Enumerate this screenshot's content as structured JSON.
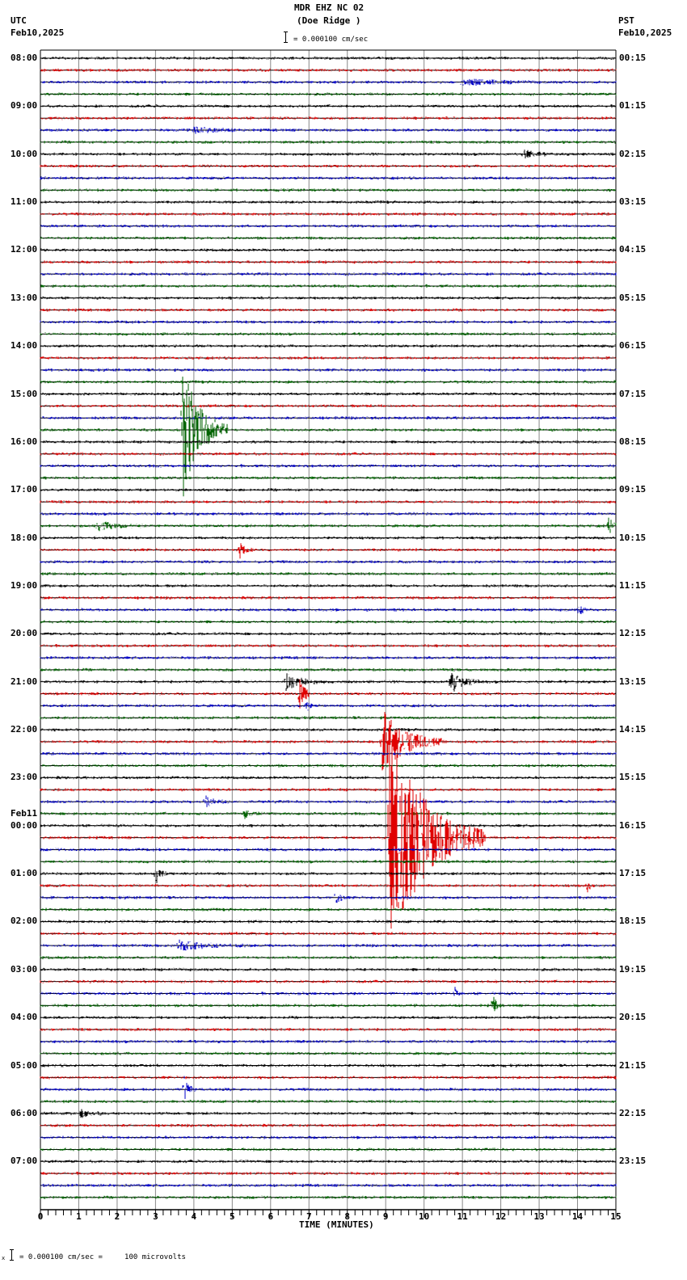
{
  "header": {
    "station": "MDR EHZ NC 02",
    "location": "(Doe Ridge )",
    "left_tz": "UTC",
    "left_date": "Feb10,2025",
    "right_tz": "PST",
    "right_date": "Feb10,2025",
    "scale_text": "= 0.000100 cm/sec"
  },
  "footer": {
    "scale_prefix": "x",
    "scale_text": "= 0.000100 cm/sec =     100 microvolts"
  },
  "chart_data": {
    "type": "line",
    "title": "MDR EHZ NC 02 (Doe Ridge )",
    "xlabel": "TIME (MINUTES)",
    "ylabel": "",
    "xlim": [
      0,
      15
    ],
    "x_ticks": [
      "0",
      "1",
      "2",
      "3",
      "4",
      "5",
      "6",
      "7",
      "8",
      "9",
      "10",
      "11",
      "12",
      "13",
      "14",
      "15"
    ],
    "minor_tick_step": 0.2,
    "grid": true,
    "trace_colors": [
      "#000000",
      "#e00000",
      "#0000c8",
      "#006400"
    ],
    "traces_per_hour": 4,
    "minutes_per_trace": 15,
    "left_labels": [
      {
        "row": 0,
        "text": "08:00"
      },
      {
        "row": 4,
        "text": "09:00"
      },
      {
        "row": 8,
        "text": "10:00"
      },
      {
        "row": 12,
        "text": "11:00"
      },
      {
        "row": 16,
        "text": "12:00"
      },
      {
        "row": 20,
        "text": "13:00"
      },
      {
        "row": 24,
        "text": "14:00"
      },
      {
        "row": 28,
        "text": "15:00"
      },
      {
        "row": 32,
        "text": "16:00"
      },
      {
        "row": 36,
        "text": "17:00"
      },
      {
        "row": 40,
        "text": "18:00"
      },
      {
        "row": 44,
        "text": "19:00"
      },
      {
        "row": 48,
        "text": "20:00"
      },
      {
        "row": 52,
        "text": "21:00"
      },
      {
        "row": 56,
        "text": "22:00"
      },
      {
        "row": 60,
        "text": "23:00"
      },
      {
        "row": 64,
        "text": "00:00",
        "date": "Feb11"
      },
      {
        "row": 68,
        "text": "01:00"
      },
      {
        "row": 72,
        "text": "02:00"
      },
      {
        "row": 76,
        "text": "03:00"
      },
      {
        "row": 80,
        "text": "04:00"
      },
      {
        "row": 84,
        "text": "05:00"
      },
      {
        "row": 88,
        "text": "06:00"
      },
      {
        "row": 92,
        "text": "07:00"
      }
    ],
    "right_labels": [
      {
        "row": 0,
        "text": "00:15"
      },
      {
        "row": 4,
        "text": "01:15"
      },
      {
        "row": 8,
        "text": "02:15"
      },
      {
        "row": 12,
        "text": "03:15"
      },
      {
        "row": 16,
        "text": "04:15"
      },
      {
        "row": 20,
        "text": "05:15"
      },
      {
        "row": 24,
        "text": "06:15"
      },
      {
        "row": 28,
        "text": "07:15"
      },
      {
        "row": 32,
        "text": "08:15"
      },
      {
        "row": 36,
        "text": "09:15"
      },
      {
        "row": 40,
        "text": "10:15"
      },
      {
        "row": 44,
        "text": "11:15"
      },
      {
        "row": 48,
        "text": "12:15"
      },
      {
        "row": 52,
        "text": "13:15"
      },
      {
        "row": 56,
        "text": "14:15"
      },
      {
        "row": 60,
        "text": "15:15"
      },
      {
        "row": 64,
        "text": "16:15"
      },
      {
        "row": 68,
        "text": "17:15"
      },
      {
        "row": 72,
        "text": "18:15"
      },
      {
        "row": 76,
        "text": "19:15"
      },
      {
        "row": 80,
        "text": "20:15"
      },
      {
        "row": 84,
        "text": "21:15"
      },
      {
        "row": 88,
        "text": "22:15"
      },
      {
        "row": 92,
        "text": "23:15"
      }
    ],
    "events": [
      {
        "row": 31,
        "minute": 3.7,
        "amp": 90,
        "dur": 1.2,
        "note": "large local event, green trace 15:45 UTC"
      },
      {
        "row": 39,
        "minute": 14.8,
        "amp": 12,
        "dur": 0.3
      },
      {
        "row": 39,
        "minute": 1.5,
        "amp": 5,
        "dur": 1.5
      },
      {
        "row": 41,
        "minute": 5.2,
        "amp": 9,
        "dur": 0.4
      },
      {
        "row": 46,
        "minute": 14.05,
        "amp": 8,
        "dur": 0.2
      },
      {
        "row": 52,
        "minute": 6.4,
        "amp": 10,
        "dur": 1.0
      },
      {
        "row": 52,
        "minute": 10.7,
        "amp": 14,
        "dur": 0.8
      },
      {
        "row": 53,
        "minute": 6.75,
        "amp": 35,
        "dur": 0.3
      },
      {
        "row": 54,
        "minute": 6.95,
        "amp": 9,
        "dur": 0.2
      },
      {
        "row": 57,
        "minute": 8.9,
        "amp": 40,
        "dur": 1.6,
        "note": "red trace 22:15 UTC"
      },
      {
        "row": 65,
        "minute": 9.1,
        "amp": 140,
        "dur": 2.5,
        "note": "largest event, red trace 00:15 UTC Feb11"
      },
      {
        "row": 62,
        "minute": 4.3,
        "amp": 6,
        "dur": 0.6
      },
      {
        "row": 63,
        "minute": 5.3,
        "amp": 6,
        "dur": 0.5
      },
      {
        "row": 68,
        "minute": 3.0,
        "amp": 14,
        "dur": 0.3
      },
      {
        "row": 69,
        "minute": 14.25,
        "amp": 10,
        "dur": 0.2
      },
      {
        "row": 70,
        "minute": 7.7,
        "amp": 9,
        "dur": 0.3
      },
      {
        "row": 74,
        "minute": 3.6,
        "amp": 6,
        "dur": 1.8
      },
      {
        "row": 78,
        "minute": 10.8,
        "amp": 7,
        "dur": 0.2
      },
      {
        "row": 79,
        "minute": 11.8,
        "amp": 14,
        "dur": 0.2
      },
      {
        "row": 86,
        "minute": 3.75,
        "amp": 16,
        "dur": 0.3
      },
      {
        "row": 88,
        "minute": 1.0,
        "amp": 5,
        "dur": 0.8
      },
      {
        "row": 8,
        "minute": 12.6,
        "amp": 5,
        "dur": 0.8
      },
      {
        "row": 6,
        "minute": 4.0,
        "amp": 4,
        "dur": 1.4
      },
      {
        "row": 2,
        "minute": 11.0,
        "amp": 4,
        "dur": 2.0
      }
    ]
  }
}
